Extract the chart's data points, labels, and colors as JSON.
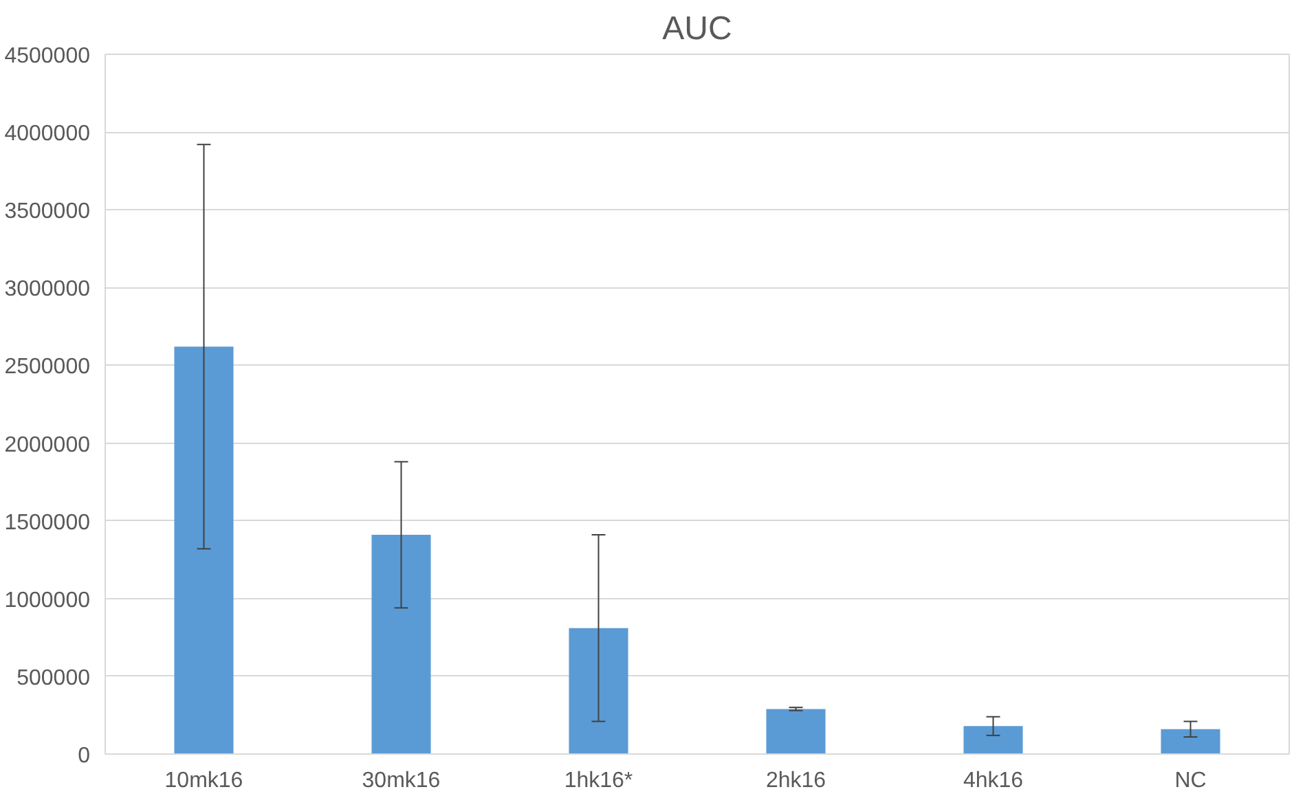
{
  "chart_data": {
    "type": "bar",
    "title": "AUC",
    "categories": [
      "10mk16",
      "30mk16",
      "1hk16*",
      "2hk16",
      "4hk16",
      "NC"
    ],
    "values": [
      2620000,
      1410000,
      810000,
      290000,
      180000,
      160000
    ],
    "errors": [
      1300000,
      470000,
      600000,
      10000,
      60000,
      50000
    ],
    "color": "#5b9bd5",
    "ylim": [
      0,
      4500000
    ],
    "yticks": [
      0,
      500000,
      1000000,
      1500000,
      2000000,
      2500000,
      3000000,
      3500000,
      4000000,
      4500000
    ],
    "grid": "y"
  }
}
